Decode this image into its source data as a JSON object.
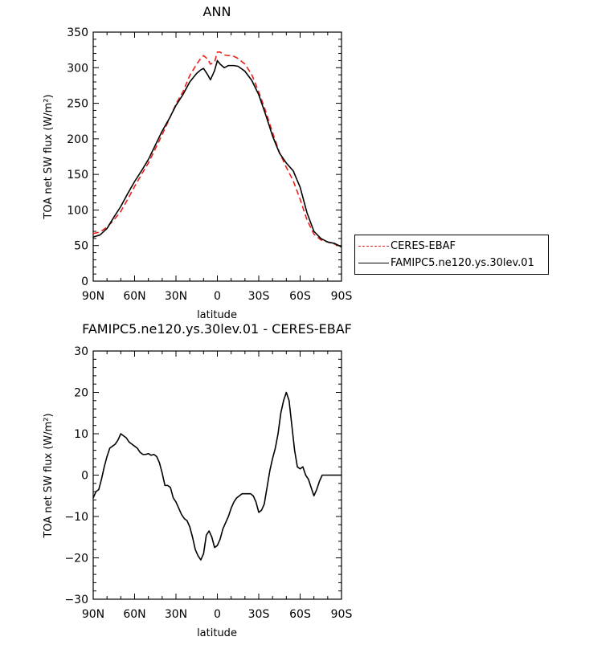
{
  "chart_data": [
    {
      "type": "line",
      "title": "ANN",
      "xlabel": "latitude",
      "ylabel": "TOA net SW flux (W/m²)",
      "xlim": [
        90,
        -90
      ],
      "ylim": [
        0,
        350
      ],
      "xticks": [
        90,
        60,
        30,
        0,
        -30,
        -60,
        -90
      ],
      "xtick_labels": [
        "90N",
        "60N",
        "30N",
        "0",
        "30S",
        "60S",
        "90S"
      ],
      "yticks": [
        0,
        50,
        100,
        150,
        200,
        250,
        300,
        350
      ],
      "legend_position": "right, outside plot",
      "series": [
        {
          "name": "CERES-EBAF",
          "color": "#e8211c",
          "dash": "dashed",
          "x": [
            90,
            85,
            80,
            75,
            70,
            65,
            60,
            55,
            50,
            45,
            40,
            35,
            30,
            25,
            20,
            15,
            12,
            10,
            7,
            5,
            2,
            0,
            -2,
            -5,
            -8,
            -10,
            -12,
            -15,
            -20,
            -25,
            -30,
            -35,
            -40,
            -45,
            -50,
            -55,
            -60,
            -65,
            -70,
            -75,
            -80,
            -85,
            -90
          ],
          "y": [
            67,
            69,
            76,
            86,
            98,
            115,
            133,
            150,
            166,
            186,
            206,
            227,
            249,
            266,
            289,
            305,
            313,
            317,
            312,
            305,
            308,
            322,
            322,
            318,
            317,
            317,
            316,
            313,
            305,
            290,
            266,
            239,
            209,
            181,
            160,
            141,
            115,
            86,
            66,
            58,
            55,
            52,
            49
          ]
        },
        {
          "name": "FAMIPC5.ne120.ys.30lev.01",
          "color": "#000000",
          "dash": "solid",
          "x": [
            90,
            85,
            80,
            75,
            70,
            65,
            60,
            55,
            50,
            45,
            40,
            35,
            30,
            25,
            20,
            15,
            12,
            10,
            7,
            5,
            2,
            0,
            -2,
            -5,
            -8,
            -10,
            -12,
            -15,
            -20,
            -25,
            -30,
            -35,
            -40,
            -45,
            -50,
            -55,
            -60,
            -65,
            -70,
            -75,
            -80,
            -85,
            -90
          ],
          "y": [
            62,
            65,
            74,
            90,
            105,
            123,
            140,
            155,
            171,
            191,
            211,
            228,
            247,
            262,
            280,
            292,
            297,
            299,
            290,
            283,
            296,
            310,
            305,
            300,
            303,
            303,
            303,
            302,
            295,
            282,
            262,
            234,
            204,
            180,
            166,
            155,
            132,
            96,
            70,
            60,
            55,
            53,
            48
          ]
        }
      ]
    },
    {
      "type": "line",
      "title": "FAMIPC5.ne120.ys.30lev.01 - CERES-EBAF",
      "xlabel": "latitude",
      "ylabel": "TOA net SW flux (W/m²)",
      "xlim": [
        90,
        -90
      ],
      "ylim": [
        -30,
        30
      ],
      "xticks": [
        90,
        60,
        30,
        0,
        -30,
        -60,
        -90
      ],
      "xtick_labels": [
        "90N",
        "60N",
        "30N",
        "0",
        "30S",
        "60S",
        "90S"
      ],
      "yticks": [
        -30,
        -20,
        -10,
        0,
        10,
        20,
        30
      ],
      "series": [
        {
          "color": "#000000",
          "dash": "solid",
          "x": [
            90,
            88,
            86,
            84,
            82,
            80,
            78,
            76,
            74,
            72,
            70,
            68,
            66,
            64,
            62,
            60,
            58,
            56,
            54,
            52,
            50,
            48,
            46,
            44,
            42,
            40,
            38,
            36,
            34,
            32,
            30,
            28,
            26,
            24,
            22,
            20,
            18,
            16,
            14,
            12,
            10,
            8,
            6,
            4,
            2,
            0,
            -2,
            -4,
            -6,
            -8,
            -10,
            -12,
            -14,
            -16,
            -18,
            -20,
            -22,
            -24,
            -26,
            -28,
            -30,
            -32,
            -34,
            -36,
            -38,
            -40,
            -42,
            -44,
            -46,
            -48,
            -50,
            -52,
            -54,
            -56,
            -58,
            -60,
            -62,
            -64,
            -66,
            -68,
            -70,
            -72,
            -74,
            -76,
            -78,
            -80,
            -82,
            -84,
            -86,
            -88,
            -90
          ],
          "y": [
            -5.5,
            -4,
            -3.5,
            -1,
            2,
            4.5,
            6.5,
            7,
            7.5,
            8.5,
            10,
            9.5,
            9,
            8,
            7.5,
            7,
            6.5,
            5.5,
            5,
            5,
            5.2,
            4.8,
            5,
            4.5,
            3,
            0.5,
            -2.5,
            -2.5,
            -3,
            -5.5,
            -6.5,
            -8,
            -9.5,
            -10.5,
            -11,
            -12.5,
            -15,
            -18,
            -19.5,
            -20.5,
            -19,
            -14.5,
            -13.5,
            -15,
            -17.5,
            -17,
            -15.5,
            -13,
            -11.5,
            -10,
            -8,
            -6.5,
            -5.5,
            -5,
            -4.5,
            -4.5,
            -4.5,
            -4.5,
            -5,
            -6.5,
            -9,
            -8.5,
            -7,
            -3,
            1,
            4,
            6.5,
            10,
            15,
            18,
            20,
            18,
            12,
            6,
            2,
            1.5,
            2,
            0,
            -1,
            -3,
            -5,
            -3.5,
            -1.5,
            0,
            0,
            0,
            0,
            0,
            0,
            0,
            0
          ]
        }
      ]
    }
  ]
}
